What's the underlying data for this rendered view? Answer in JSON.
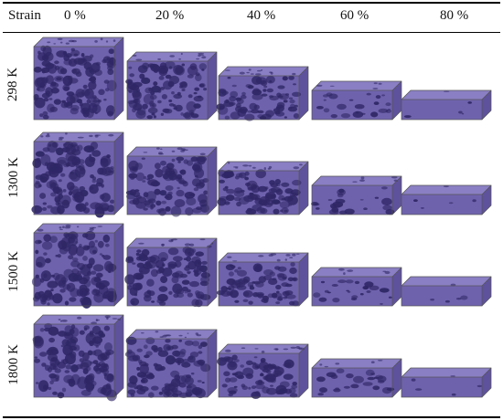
{
  "table": {
    "strain_header": "Strain",
    "columns": [
      "0 %",
      "20 %",
      "40 %",
      "60 %",
      "80 %"
    ],
    "rows": [
      "298 K",
      "1300 K",
      "1500 K",
      "1800 K"
    ],
    "strain_fractions": [
      0,
      0.2,
      0.4,
      0.6,
      0.8
    ]
  },
  "colors": {
    "foam_front": "#6f62ad",
    "foam_top": "#8a7fc4",
    "foam_side": "#5f529c",
    "pore": "#2f2766",
    "rule": "#000000"
  }
}
